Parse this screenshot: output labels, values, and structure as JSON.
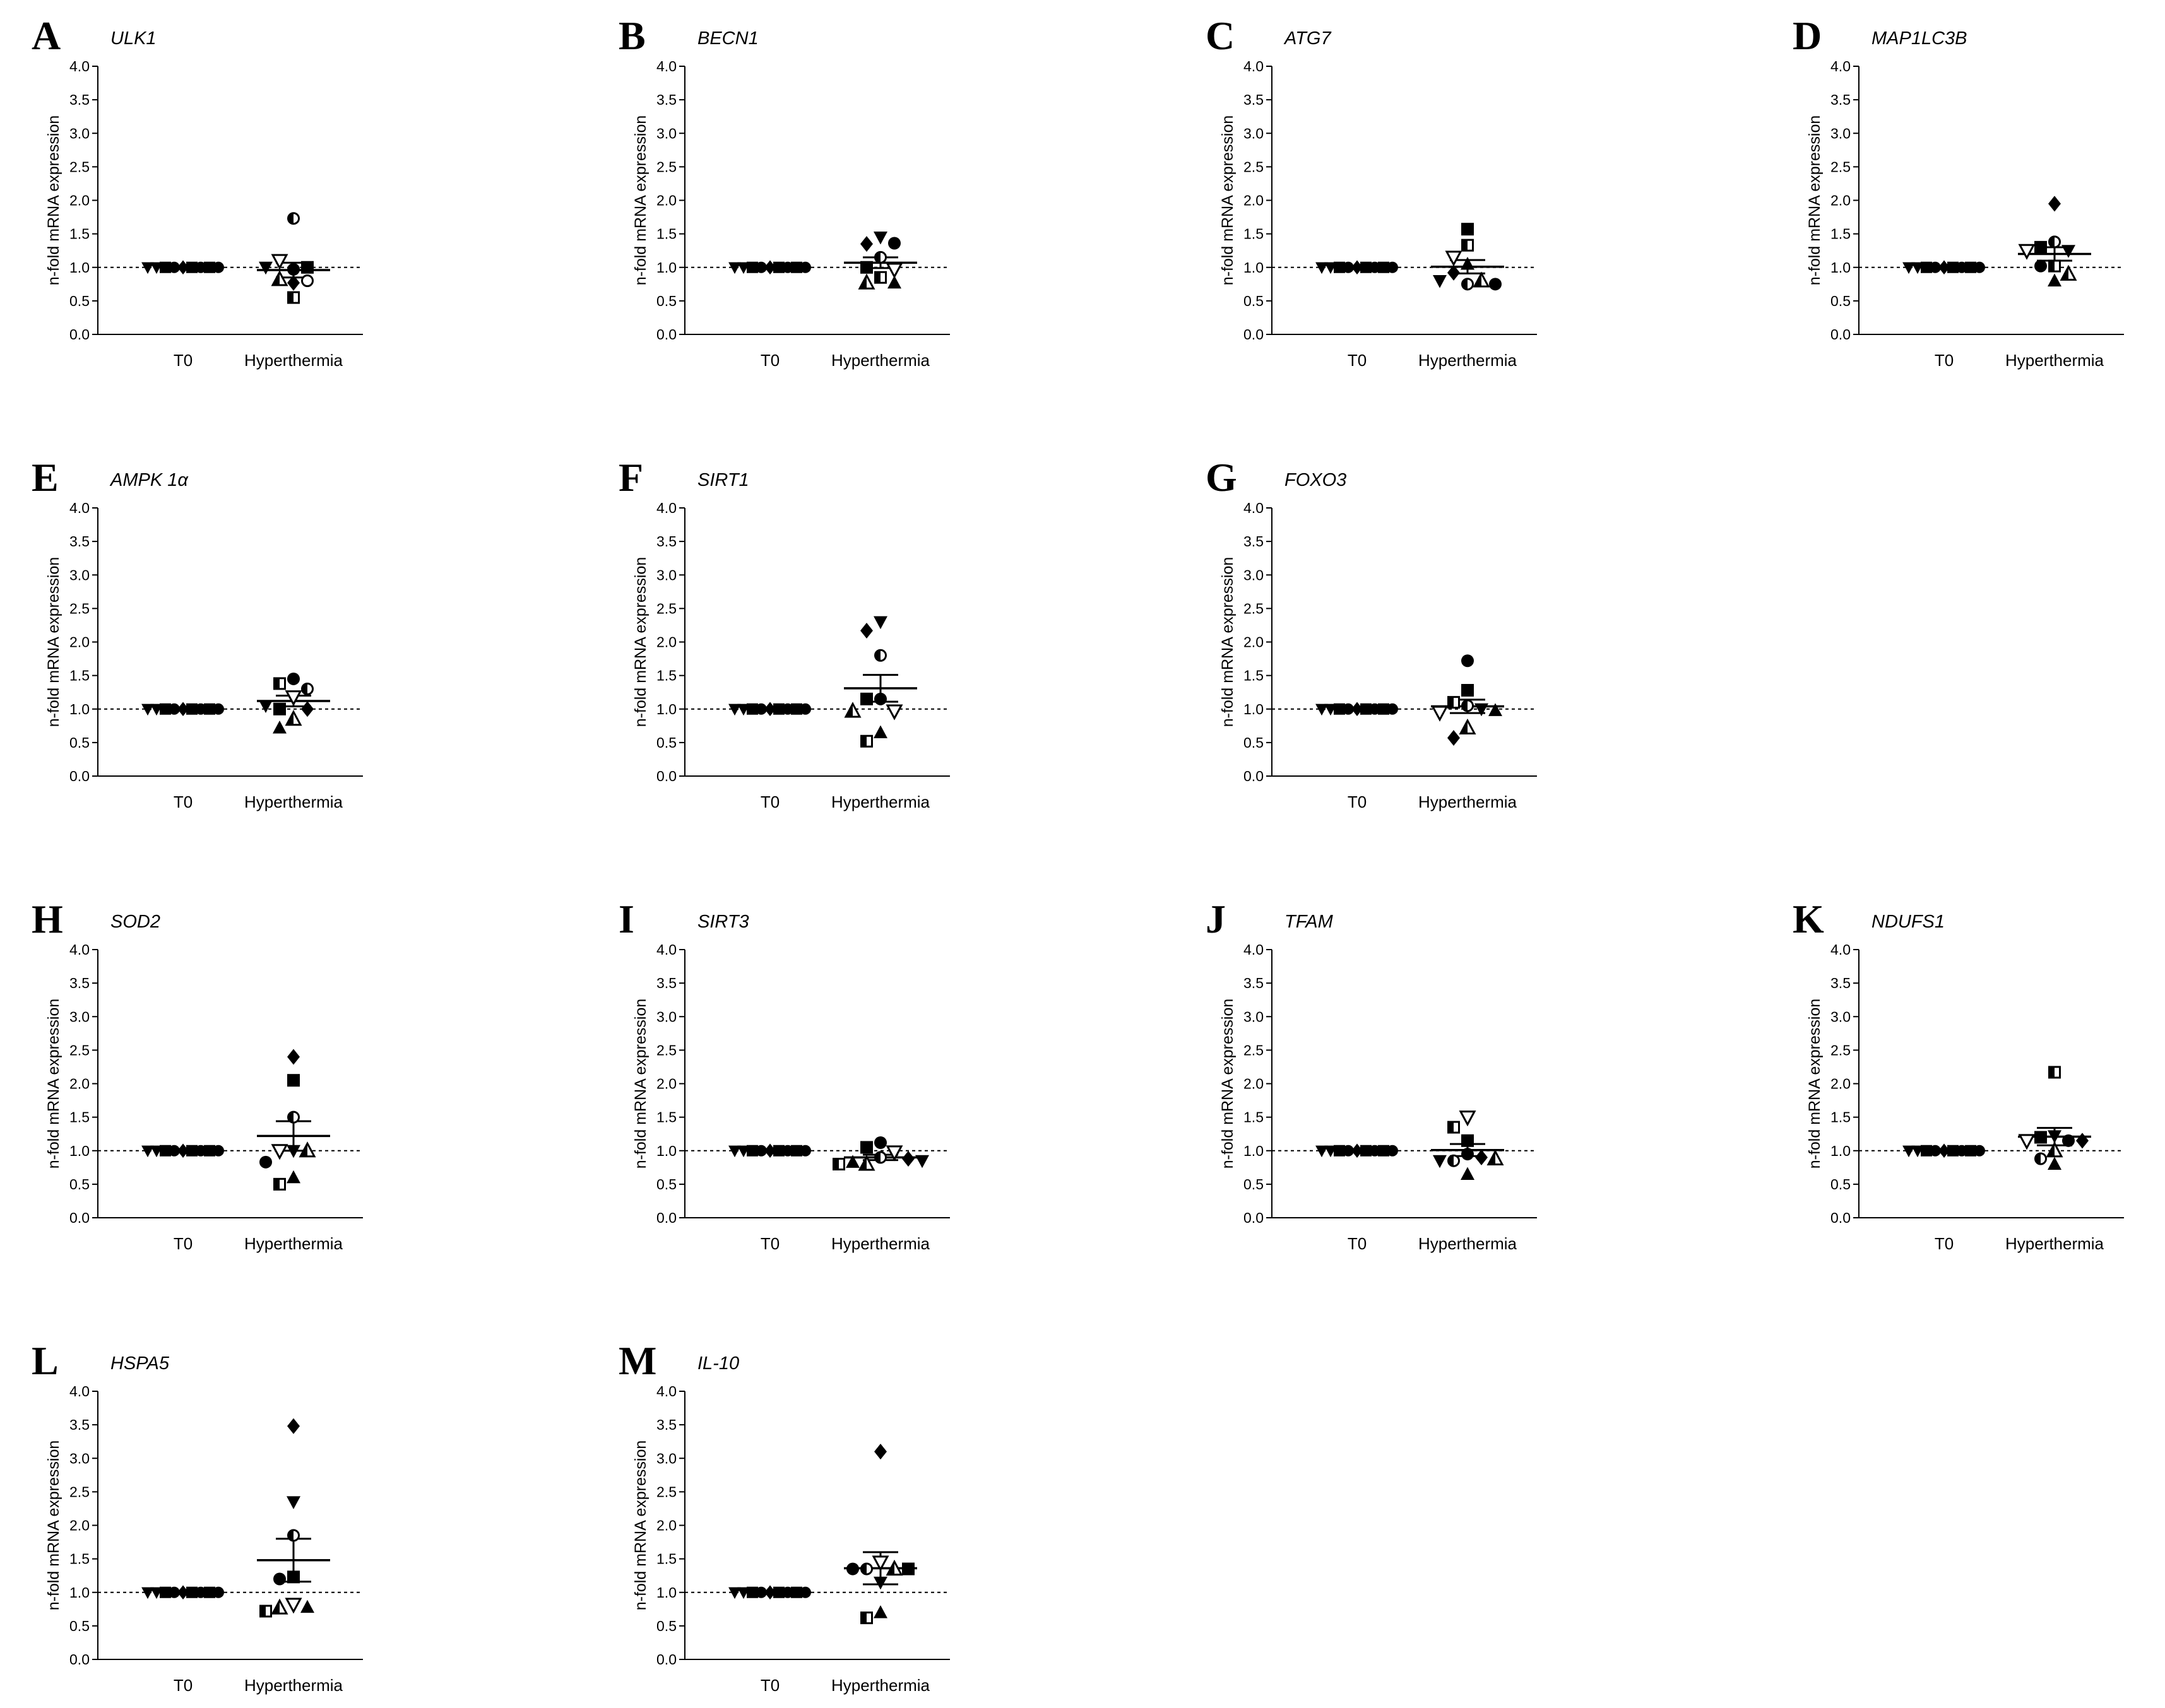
{
  "figure": {
    "y_axis_label": "n-fold mRNA expression",
    "y_ticks": [
      "0.0",
      "0.5",
      "1.0",
      "1.5",
      "2.0",
      "2.5",
      "3.0",
      "3.5",
      "4.0"
    ]
  },
  "chart_data": [
    {
      "panel": "A",
      "title": "ULK1",
      "type": "scatter",
      "categories": [
        "T0",
        "Hyperthermia"
      ],
      "ylabel": "n-fold mRNA expression",
      "ylim": [
        0,
        4
      ],
      "reference_line": 1.0,
      "t0": [
        1,
        1,
        1,
        1,
        1,
        1,
        1,
        1,
        1
      ],
      "points": [
        {
          "marker": "circle-half",
          "value": 1.73
        },
        {
          "marker": "circle",
          "value": 0.97
        },
        {
          "marker": "tri-down-open",
          "value": 1.1
        },
        {
          "marker": "square",
          "value": 1.0
        },
        {
          "marker": "tri-down",
          "value": 1.0
        },
        {
          "marker": "tri-half",
          "value": 0.82
        },
        {
          "marker": "circle-open",
          "value": 0.8
        },
        {
          "marker": "diamond",
          "value": 0.77
        },
        {
          "marker": "square-half",
          "value": 0.55
        }
      ],
      "mean": 0.96,
      "sem": 0.11
    },
    {
      "panel": "B",
      "title": "BECN1",
      "type": "scatter",
      "categories": [
        "T0",
        "Hyperthermia"
      ],
      "ylabel": "n-fold mRNA expression",
      "ylim": [
        0,
        4
      ],
      "reference_line": 1.0,
      "t0": [
        1,
        1,
        1,
        1,
        1,
        1,
        1,
        1,
        1
      ],
      "points": [
        {
          "marker": "tri-down",
          "value": 1.45
        },
        {
          "marker": "diamond",
          "value": 1.35
        },
        {
          "marker": "circle",
          "value": 1.36
        },
        {
          "marker": "circle-half",
          "value": 1.15
        },
        {
          "marker": "square",
          "value": 1.0
        },
        {
          "marker": "tri-down-open",
          "value": 0.97
        },
        {
          "marker": "square-half",
          "value": 0.85
        },
        {
          "marker": "tri-half",
          "value": 0.77
        },
        {
          "marker": "tri-up",
          "value": 0.77
        }
      ],
      "mean": 1.07,
      "sem": 0.08
    },
    {
      "panel": "C",
      "title": "ATG7",
      "type": "scatter",
      "categories": [
        "T0",
        "Hyperthermia"
      ],
      "ylabel": "n-fold mRNA expression",
      "ylim": [
        0,
        4
      ],
      "reference_line": 1.0,
      "t0": [
        1,
        1,
        1,
        1,
        1,
        1,
        1,
        1,
        1
      ],
      "points": [
        {
          "marker": "square",
          "value": 1.57
        },
        {
          "marker": "square-half",
          "value": 1.33
        },
        {
          "marker": "tri-down-open",
          "value": 1.15
        },
        {
          "marker": "tri-up",
          "value": 1.05
        },
        {
          "marker": "diamond",
          "value": 0.92
        },
        {
          "marker": "circle-half",
          "value": 0.75
        },
        {
          "marker": "tri-half",
          "value": 0.8
        },
        {
          "marker": "tri-down",
          "value": 0.8
        },
        {
          "marker": "circle",
          "value": 0.75
        }
      ],
      "mean": 1.01,
      "sem": 0.1
    },
    {
      "panel": "D",
      "title": "MAP1LC3B",
      "type": "scatter",
      "categories": [
        "T0",
        "Hyperthermia"
      ],
      "ylabel": "n-fold mRNA expression",
      "ylim": [
        0,
        4
      ],
      "reference_line": 1.0,
      "t0": [
        1,
        1,
        1,
        1,
        1,
        1,
        1,
        1,
        1
      ],
      "points": [
        {
          "marker": "diamond",
          "value": 1.95
        },
        {
          "marker": "circle-half",
          "value": 1.38
        },
        {
          "marker": "square",
          "value": 1.3
        },
        {
          "marker": "tri-down",
          "value": 1.25
        },
        {
          "marker": "tri-down-open",
          "value": 1.25
        },
        {
          "marker": "square-half",
          "value": 1.02
        },
        {
          "marker": "circle",
          "value": 1.02
        },
        {
          "marker": "tri-up",
          "value": 0.8
        },
        {
          "marker": "tri-half",
          "value": 0.9
        }
      ],
      "mean": 1.2,
      "sem": 0.1
    },
    {
      "panel": "E",
      "title": "AMPK 1α",
      "type": "scatter",
      "categories": [
        "T0",
        "Hyperthermia"
      ],
      "ylabel": "n-fold mRNA expression",
      "ylim": [
        0,
        4
      ],
      "reference_line": 1.0,
      "t0": [
        1,
        1,
        1,
        1,
        1,
        1,
        1,
        1,
        1
      ],
      "points": [
        {
          "marker": "circle",
          "value": 1.45
        },
        {
          "marker": "square-half",
          "value": 1.38
        },
        {
          "marker": "circle-half",
          "value": 1.3
        },
        {
          "marker": "tri-down-open",
          "value": 1.18
        },
        {
          "marker": "square",
          "value": 1.0
        },
        {
          "marker": "diamond",
          "value": 1.0
        },
        {
          "marker": "tri-half",
          "value": 0.85
        },
        {
          "marker": "tri-up",
          "value": 0.72
        },
        {
          "marker": "tri-down",
          "value": 1.05
        }
      ],
      "mean": 1.12,
      "sem": 0.08
    },
    {
      "panel": "F",
      "title": "SIRT1",
      "type": "scatter",
      "categories": [
        "T0",
        "Hyperthermia"
      ],
      "ylabel": "n-fold mRNA expression",
      "ylim": [
        0,
        4
      ],
      "reference_line": 1.0,
      "t0": [
        1,
        1,
        1,
        1,
        1,
        1,
        1,
        1,
        1
      ],
      "points": [
        {
          "marker": "tri-down",
          "value": 2.3
        },
        {
          "marker": "diamond",
          "value": 2.17
        },
        {
          "marker": "circle-half",
          "value": 1.8
        },
        {
          "marker": "circle",
          "value": 1.15
        },
        {
          "marker": "square",
          "value": 1.15
        },
        {
          "marker": "tri-down-open",
          "value": 0.97
        },
        {
          "marker": "tri-half",
          "value": 0.97
        },
        {
          "marker": "tri-up",
          "value": 0.65
        },
        {
          "marker": "square-half",
          "value": 0.52
        }
      ],
      "mean": 1.31,
      "sem": 0.2
    },
    {
      "panel": "G",
      "title": "FOXO3",
      "type": "scatter",
      "categories": [
        "T0",
        "Hyperthermia"
      ],
      "ylabel": "n-fold mRNA expression",
      "ylim": [
        0,
        4
      ],
      "reference_line": 1.0,
      "t0": [
        1,
        1,
        1,
        1,
        1,
        1,
        1,
        1,
        1
      ],
      "points": [
        {
          "marker": "circle",
          "value": 1.72
        },
        {
          "marker": "square",
          "value": 1.28
        },
        {
          "marker": "square-half",
          "value": 1.1
        },
        {
          "marker": "circle-half",
          "value": 1.05
        },
        {
          "marker": "tri-down",
          "value": 1.0
        },
        {
          "marker": "tri-down-open",
          "value": 0.95
        },
        {
          "marker": "tri-up",
          "value": 0.98
        },
        {
          "marker": "tri-half",
          "value": 0.72
        },
        {
          "marker": "diamond",
          "value": 0.57
        }
      ],
      "mean": 1.04,
      "sem": 0.1
    },
    {
      "panel": "H",
      "title": "SOD2",
      "type": "scatter",
      "categories": [
        "T0",
        "Hyperthermia"
      ],
      "ylabel": "n-fold mRNA expression",
      "ylim": [
        0,
        4
      ],
      "reference_line": 1.0,
      "t0": [
        1,
        1,
        1,
        1,
        1,
        1,
        1,
        1,
        1
      ],
      "points": [
        {
          "marker": "diamond",
          "value": 2.4
        },
        {
          "marker": "square",
          "value": 2.05
        },
        {
          "marker": "circle-half",
          "value": 1.5
        },
        {
          "marker": "tri-down",
          "value": 1.0
        },
        {
          "marker": "tri-down-open",
          "value": 1.0
        },
        {
          "marker": "tri-half",
          "value": 1.0
        },
        {
          "marker": "circle",
          "value": 0.83
        },
        {
          "marker": "tri-up",
          "value": 0.6
        },
        {
          "marker": "square-half",
          "value": 0.5
        }
      ],
      "mean": 1.22,
      "sem": 0.22
    },
    {
      "panel": "I",
      "title": "SIRT3",
      "type": "scatter",
      "categories": [
        "T0",
        "Hyperthermia"
      ],
      "ylabel": "n-fold mRNA expression",
      "ylim": [
        0,
        4
      ],
      "reference_line": 1.0,
      "t0": [
        1,
        1,
        1,
        1,
        1,
        1,
        1,
        1,
        1
      ],
      "points": [
        {
          "marker": "circle",
          "value": 1.12
        },
        {
          "marker": "square",
          "value": 1.05
        },
        {
          "marker": "tri-down-open",
          "value": 0.98
        },
        {
          "marker": "circle-half",
          "value": 0.9
        },
        {
          "marker": "tri-half",
          "value": 0.8
        },
        {
          "marker": "tri-up",
          "value": 0.83
        },
        {
          "marker": "diamond",
          "value": 0.88
        },
        {
          "marker": "square-half",
          "value": 0.8
        },
        {
          "marker": "tri-down",
          "value": 0.85
        }
      ],
      "mean": 0.9,
      "sem": 0.04
    },
    {
      "panel": "J",
      "title": "TFAM",
      "type": "scatter",
      "categories": [
        "T0",
        "Hyperthermia"
      ],
      "ylabel": "n-fold mRNA expression",
      "ylim": [
        0,
        4
      ],
      "reference_line": 1.0,
      "t0": [
        1,
        1,
        1,
        1,
        1,
        1,
        1,
        1,
        1
      ],
      "points": [
        {
          "marker": "tri-down-open",
          "value": 1.5
        },
        {
          "marker": "square-half",
          "value": 1.35
        },
        {
          "marker": "square",
          "value": 1.15
        },
        {
          "marker": "circle",
          "value": 0.95
        },
        {
          "marker": "circle-half",
          "value": 0.85
        },
        {
          "marker": "diamond",
          "value": 0.9
        },
        {
          "marker": "tri-down",
          "value": 0.85
        },
        {
          "marker": "tri-half",
          "value": 0.88
        },
        {
          "marker": "tri-up",
          "value": 0.65
        }
      ],
      "mean": 1.01,
      "sem": 0.09
    },
    {
      "panel": "K",
      "title": "NDUFS1",
      "type": "scatter",
      "categories": [
        "T0",
        "Hyperthermia"
      ],
      "ylabel": "n-fold mRNA expression",
      "ylim": [
        0,
        4
      ],
      "reference_line": 1.0,
      "t0": [
        1,
        1,
        1,
        1,
        1,
        1,
        1,
        1,
        1
      ],
      "points": [
        {
          "marker": "square-half",
          "value": 2.17
        },
        {
          "marker": "tri-down",
          "value": 1.22
        },
        {
          "marker": "square",
          "value": 1.2
        },
        {
          "marker": "circle",
          "value": 1.15
        },
        {
          "marker": "tri-down-open",
          "value": 1.15
        },
        {
          "marker": "diamond",
          "value": 1.15
        },
        {
          "marker": "tri-half",
          "value": 1.0
        },
        {
          "marker": "circle-half",
          "value": 0.88
        },
        {
          "marker": "tri-up",
          "value": 0.8
        }
      ],
      "mean": 1.21,
      "sem": 0.13
    },
    {
      "panel": "L",
      "title": "HSPA5",
      "type": "scatter",
      "categories": [
        "T0",
        "Hyperthermia"
      ],
      "ylabel": "n-fold mRNA expression",
      "ylim": [
        0,
        4
      ],
      "reference_line": 1.0,
      "t0": [
        1,
        1,
        1,
        1,
        1,
        1,
        1,
        1,
        1
      ],
      "points": [
        {
          "marker": "diamond",
          "value": 3.48
        },
        {
          "marker": "tri-down",
          "value": 2.35
        },
        {
          "marker": "circle-half",
          "value": 1.85
        },
        {
          "marker": "square",
          "value": 1.23
        },
        {
          "marker": "circle",
          "value": 1.2
        },
        {
          "marker": "tri-down-open",
          "value": 0.82
        },
        {
          "marker": "tri-half",
          "value": 0.77
        },
        {
          "marker": "tri-up",
          "value": 0.78
        },
        {
          "marker": "square-half",
          "value": 0.72
        }
      ],
      "mean": 1.48,
      "sem": 0.32
    },
    {
      "panel": "M",
      "title": "IL-10",
      "type": "scatter",
      "categories": [
        "T0",
        "Hyperthermia"
      ],
      "ylabel": "n-fold mRNA expression",
      "ylim": [
        0,
        4
      ],
      "reference_line": 1.0,
      "t0": [
        1,
        1,
        1,
        1,
        1,
        1,
        1,
        1,
        1
      ],
      "points": [
        {
          "marker": "diamond",
          "value": 3.1
        },
        {
          "marker": "tri-down-open",
          "value": 1.45
        },
        {
          "marker": "circle-half",
          "value": 1.35
        },
        {
          "marker": "tri-half",
          "value": 1.35
        },
        {
          "marker": "circle",
          "value": 1.35
        },
        {
          "marker": "square",
          "value": 1.35
        },
        {
          "marker": "tri-down",
          "value": 1.15
        },
        {
          "marker": "tri-up",
          "value": 0.7
        },
        {
          "marker": "square-half",
          "value": 0.62
        }
      ],
      "mean": 1.36,
      "sem": 0.24
    }
  ]
}
